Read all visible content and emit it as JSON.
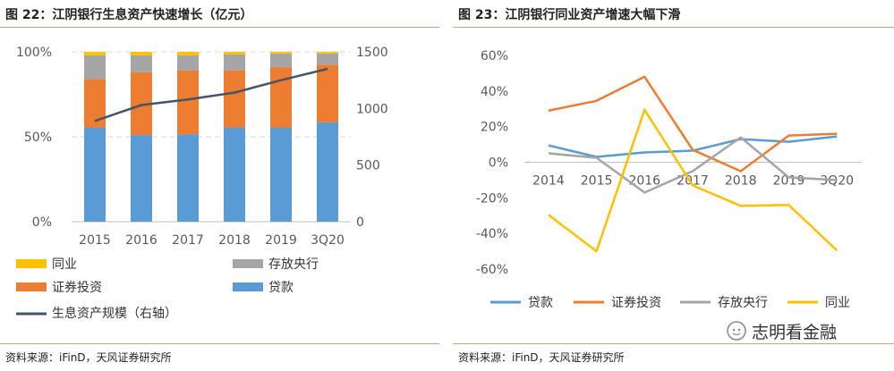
{
  "charts": {
    "left": {
      "title": "图 22：江阴银行生息资产快速增长（亿元）",
      "source": "资料来源：iFinD，天风证券研究所"
    },
    "right": {
      "title": "图 23：江阴银行同业资产增速大幅下滑",
      "source": "资料来源：iFinD，天风证券研究所",
      "watermark": "志明看金融"
    }
  },
  "chart_data": [
    {
      "type": "bar",
      "stacked": true,
      "percent": true,
      "title": "图 22：江阴银行生息资产快速增长（亿元）",
      "categories": [
        "2015",
        "2016",
        "2017",
        "2018",
        "2019",
        "3Q20"
      ],
      "y_left_ticks": [
        "0%",
        "50%",
        "100%"
      ],
      "y_left_range": [
        0,
        100
      ],
      "y_right_ticks": [
        "0",
        "500",
        "1000",
        "1500"
      ],
      "y_right_range": [
        0,
        1500
      ],
      "grid": "dashed horizontal at 50% and 100%",
      "legend_position": "bottom",
      "series": [
        {
          "name": "贷款",
          "color": "#5b9bd5",
          "values": [
            55.5,
            51,
            51.5,
            55.5,
            55.5,
            58.5
          ]
        },
        {
          "name": "证券投资",
          "color": "#ed7d31",
          "values": [
            28.5,
            37,
            37.5,
            33.5,
            35.5,
            34
          ]
        },
        {
          "name": "存放央行",
          "color": "#a5a5a5",
          "values": [
            14,
            10,
            9,
            9.5,
            8,
            6.5
          ]
        },
        {
          "name": "同业",
          "color": "#ffc000",
          "values": [
            2,
            2,
            2,
            1.5,
            1,
            1
          ]
        }
      ],
      "line_series": {
        "name": "生息资产规模（右轴）",
        "color": "#44546a",
        "axis": "right",
        "values": [
          890,
          1030,
          1080,
          1140,
          1250,
          1350
        ]
      },
      "legend": [
        "同业",
        "存放央行",
        "证券投资",
        "贷款",
        "生息资产规模（右轴）"
      ]
    },
    {
      "type": "line",
      "title": "图 23：江阴银行同业资产增速大幅下滑",
      "categories": [
        "2014",
        "2015",
        "2016",
        "2017",
        "2018",
        "2019",
        "3Q20"
      ],
      "y_ticks": [
        "-60%",
        "-40%",
        "-20%",
        "0%",
        "20%",
        "40%",
        "60%"
      ],
      "y_range": [
        -60,
        60
      ],
      "grid": false,
      "legend_position": "bottom",
      "series": [
        {
          "name": "贷款",
          "color": "#5b9bd5",
          "values": [
            9.5,
            3,
            5.5,
            6.5,
            13,
            11.5,
            14.5
          ]
        },
        {
          "name": "证券投资",
          "color": "#ed7d31",
          "values": [
            29,
            34.5,
            48,
            7,
            -5,
            15,
            16
          ]
        },
        {
          "name": "存放央行",
          "color": "#a5a5a5",
          "values": [
            5,
            2.5,
            -17,
            -5,
            14,
            -8.5,
            -10
          ]
        },
        {
          "name": "同业",
          "color": "#ffc000",
          "values": [
            -29.5,
            -50,
            29.5,
            -13,
            -24.5,
            -24,
            -49.5
          ]
        }
      ]
    }
  ]
}
